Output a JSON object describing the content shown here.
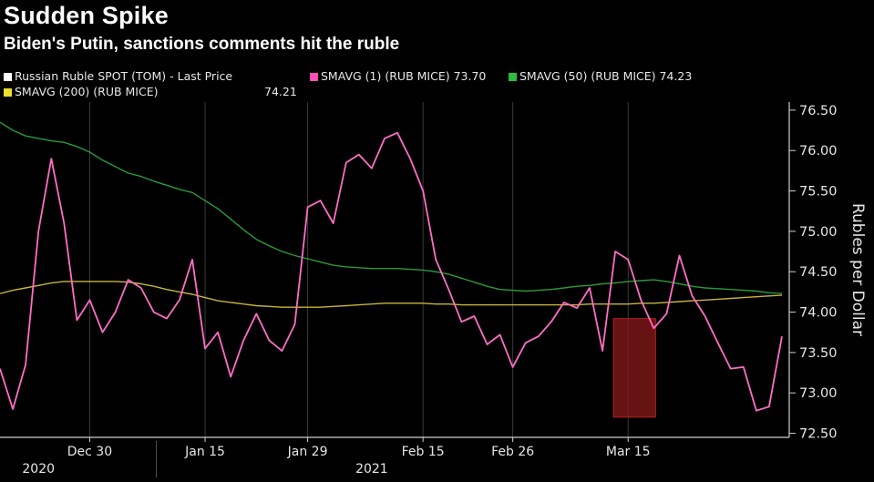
{
  "colors": {
    "background": "#000000",
    "price": "#ffffff",
    "sma1": "#ff6ec7",
    "sma50": "#2a9a3a",
    "sma200": "#c8b43a",
    "highlight_fill": "#8a1a1a",
    "highlight_stroke": "#b02020",
    "grid": "#3a3a3a"
  },
  "legend": {
    "items": [
      {
        "label": "Russian Ruble SPOT (TOM) - Last Price",
        "value": "",
        "color": "#ffffff"
      },
      {
        "label": "SMAVG (1) (RUB MICE)",
        "value": "73.70",
        "color": "#ff4fb4"
      },
      {
        "label": "SMAVG (50) (RUB MICE)",
        "value": "74.23",
        "color": "#2bbd3e"
      },
      {
        "label": "SMAVG (200) (RUB MICE)",
        "value": "74.21",
        "color": "#f0dc2c"
      }
    ]
  },
  "chart_data": {
    "type": "line",
    "title": "Sudden Spike",
    "subtitle": "Biden's Putin, sanctions comments hit the ruble",
    "ylabel": "Rubles per Dollar",
    "ylim": [
      72.45,
      76.6
    ],
    "y_ticks": [
      "72.50",
      "73.00",
      "73.50",
      "74.00",
      "74.50",
      "75.00",
      "75.50",
      "76.00",
      "76.50"
    ],
    "x_ticks": [
      "Dec 30",
      "Jan 15",
      "Jan 29",
      "Feb 15",
      "Feb 26",
      "Mar 15"
    ],
    "x_ticks_index": [
      7,
      16,
      24,
      33,
      40,
      49
    ],
    "year_labels": [
      {
        "label": "2020",
        "index": 3
      },
      {
        "label": "2021",
        "index": 29
      }
    ],
    "grid": "vertical",
    "legend_position": "top-left",
    "highlight_range": {
      "x_start_index": 48,
      "x_end_index": 51,
      "y_start": 72.7,
      "y_end": 73.92
    },
    "series": [
      {
        "name": "SMAVG (1) (RUB MICE)",
        "color": "sma1",
        "values": [
          73.3,
          72.8,
          73.35,
          75.0,
          75.9,
          75.1,
          73.9,
          74.15,
          73.75,
          74.0,
          74.4,
          74.3,
          74.0,
          73.92,
          74.15,
          74.65,
          73.55,
          73.75,
          73.2,
          73.65,
          73.98,
          73.65,
          73.52,
          73.85,
          75.3,
          75.38,
          75.1,
          75.85,
          75.95,
          75.78,
          76.15,
          76.22,
          75.9,
          75.5,
          74.65,
          74.28,
          73.88,
          73.95,
          73.6,
          73.72,
          73.32,
          73.62,
          73.7,
          73.88,
          74.12,
          74.05,
          74.3,
          73.52,
          74.75,
          74.65,
          74.15,
          73.8,
          73.98,
          74.7,
          74.2,
          73.95,
          73.62,
          73.3,
          73.32,
          72.78,
          72.83,
          73.7
        ]
      },
      {
        "name": "SMAVG (50) (RUB MICE)",
        "color": "sma50",
        "values": [
          76.35,
          76.25,
          76.18,
          76.15,
          76.12,
          76.1,
          76.05,
          75.98,
          75.88,
          75.8,
          75.72,
          75.68,
          75.62,
          75.57,
          75.52,
          75.48,
          75.38,
          75.28,
          75.15,
          75.02,
          74.9,
          74.82,
          74.75,
          74.7,
          74.66,
          74.62,
          74.58,
          74.56,
          74.55,
          74.54,
          74.54,
          74.54,
          74.53,
          74.52,
          74.5,
          74.47,
          74.42,
          74.37,
          74.32,
          74.28,
          74.27,
          74.26,
          74.27,
          74.28,
          74.3,
          74.32,
          74.33,
          74.35,
          74.36,
          74.38,
          74.39,
          74.4,
          74.38,
          74.35,
          74.32,
          74.3,
          74.29,
          74.28,
          74.27,
          74.26,
          74.24,
          74.23
        ]
      },
      {
        "name": "SMAVG (200) (RUB MICE)",
        "color": "sma200",
        "values": [
          74.23,
          74.27,
          74.3,
          74.33,
          74.36,
          74.38,
          74.38,
          74.38,
          74.38,
          74.38,
          74.37,
          74.35,
          74.32,
          74.28,
          74.25,
          74.22,
          74.18,
          74.14,
          74.12,
          74.1,
          74.08,
          74.07,
          74.06,
          74.06,
          74.06,
          74.06,
          74.07,
          74.08,
          74.09,
          74.1,
          74.11,
          74.11,
          74.11,
          74.11,
          74.1,
          74.1,
          74.09,
          74.09,
          74.09,
          74.09,
          74.09,
          74.09,
          74.09,
          74.09,
          74.09,
          74.09,
          74.1,
          74.1,
          74.1,
          74.1,
          74.11,
          74.11,
          74.12,
          74.13,
          74.14,
          74.15,
          74.16,
          74.17,
          74.18,
          74.19,
          74.2,
          74.21
        ]
      }
    ]
  }
}
